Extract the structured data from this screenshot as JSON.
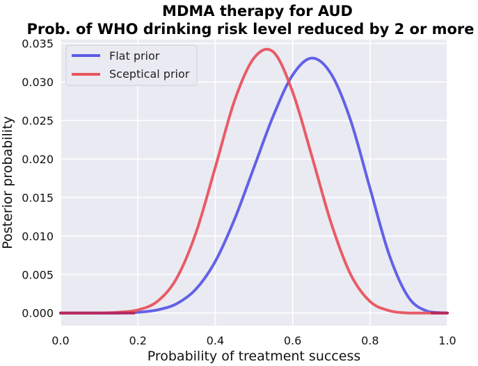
{
  "chart_data": {
    "type": "line",
    "title": "MDMA therapy for AUD",
    "subtitle": "Prob. of WHO drinking risk level reduced by 2 or more",
    "xlabel": "Probability of treatment success",
    "ylabel": "Posterior probability",
    "xlim": [
      0.0,
      1.0
    ],
    "ylim": [
      -0.00165,
      0.0355
    ],
    "grid": true,
    "legend_position": "upper-left",
    "x_ticks": [
      "0.0",
      "0.2",
      "0.4",
      "0.6",
      "0.8",
      "1.0"
    ],
    "y_ticks": [
      "0.000",
      "0.005",
      "0.010",
      "0.015",
      "0.020",
      "0.025",
      "0.030",
      "0.035"
    ],
    "series": [
      {
        "name": "Flat prior",
        "color": "#5a5ae6",
        "x": [
          0.0,
          0.05,
          0.1,
          0.15,
          0.2,
          0.25,
          0.3,
          0.35,
          0.4,
          0.45,
          0.5,
          0.55,
          0.6,
          0.65,
          0.7,
          0.75,
          0.8,
          0.85,
          0.9,
          0.95,
          1.0
        ],
        "y": [
          0.0,
          0.0,
          0.0,
          0.0,
          0.0001,
          0.0004,
          0.0012,
          0.0031,
          0.0067,
          0.0122,
          0.0189,
          0.0256,
          0.0309,
          0.0331,
          0.031,
          0.025,
          0.0162,
          0.0075,
          0.002,
          0.0002,
          0.0
        ]
      },
      {
        "name": "Sceptical prior",
        "color": "#e8545e",
        "x": [
          0.0,
          0.05,
          0.1,
          0.15,
          0.2,
          0.25,
          0.3,
          0.35,
          0.4,
          0.45,
          0.5,
          0.55,
          0.6,
          0.65,
          0.7,
          0.75,
          0.8,
          0.85,
          0.9,
          0.95,
          1.0
        ],
        "y": [
          0.0,
          0.0,
          0.0,
          0.0001,
          0.0004,
          0.0015,
          0.0045,
          0.0104,
          0.0189,
          0.0276,
          0.0331,
          0.0339,
          0.0287,
          0.0203,
          0.0116,
          0.005,
          0.0015,
          0.0003,
          0.0,
          0.0,
          0.0
        ]
      }
    ],
    "overlap_color": "#b52a5e"
  }
}
